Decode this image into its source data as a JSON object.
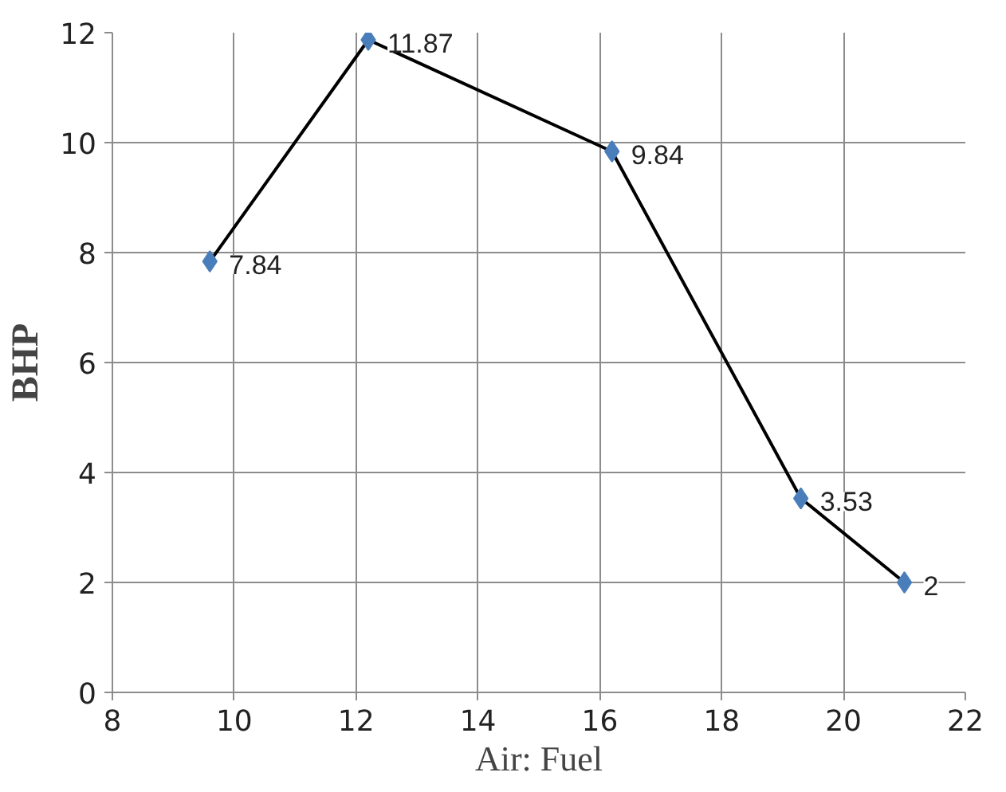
{
  "chart_data": {
    "type": "line",
    "xlabel": "Air: Fuel",
    "ylabel": "BHP",
    "x": [
      9.6,
      12.2,
      16.2,
      19.3,
      21
    ],
    "series": [
      {
        "color": "#4a7ebb",
        "values": [
          7.84,
          11.87,
          9.84,
          3.53,
          2
        ]
      }
    ],
    "xlim": [
      8,
      22
    ],
    "xticks": [
      8,
      10,
      12,
      14,
      16,
      18,
      20,
      22
    ],
    "ylim": [
      0,
      12
    ],
    "yticks": [
      0,
      2,
      4,
      6,
      8,
      10,
      12
    ],
    "grid": true,
    "marker": "diamond",
    "line_style": "solid",
    "data_labels": true
  }
}
